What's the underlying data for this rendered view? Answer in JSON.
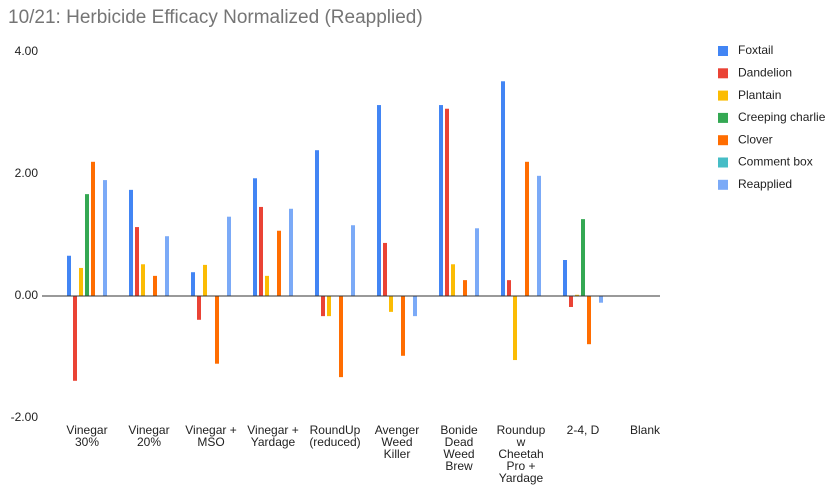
{
  "chart_data": {
    "type": "bar",
    "title": "10/21: Herbicide Efficacy Normalized (Reapplied)",
    "categories": [
      "Vinegar\n30%",
      "Vinegar\n20%",
      "Vinegar +\nMSO",
      "Vinegar +\nYardage",
      "RoundUp\n(reduced)",
      "Avenger\nWeed\nKiller",
      "Bonide\nDead\nWeed\nBrew",
      "Roundup\nw\nCheetah\nPro +\nYardage",
      "2-4, D",
      "Blank"
    ],
    "series": [
      {
        "name": "Foxtail",
        "color": "#4285f4",
        "values": [
          0.66,
          1.74,
          0.39,
          1.93,
          2.39,
          3.13,
          3.13,
          3.52,
          0.59,
          null
        ]
      },
      {
        "name": "Dandelion",
        "color": "#ea4335",
        "values": [
          -1.39,
          1.13,
          -0.39,
          1.46,
          -0.33,
          0.87,
          3.07,
          0.26,
          -0.18,
          null
        ]
      },
      {
        "name": "Plantain",
        "color": "#fbbc04",
        "values": [
          0.46,
          0.52,
          0.51,
          0.33,
          -0.33,
          -0.26,
          0.52,
          -1.05,
          0.02,
          null
        ]
      },
      {
        "name": "Creeping charlie",
        "color": "#34a853",
        "values": [
          1.67,
          null,
          null,
          null,
          null,
          null,
          null,
          null,
          1.26,
          null
        ]
      },
      {
        "name": "Clover",
        "color": "#ff6d01",
        "values": [
          2.2,
          0.33,
          -1.11,
          1.07,
          -1.33,
          -0.98,
          0.26,
          2.2,
          -0.79,
          null
        ]
      },
      {
        "name": "Comment box",
        "color": "#46bdc6",
        "values": [
          null,
          null,
          null,
          null,
          null,
          null,
          null,
          null,
          null,
          null
        ]
      },
      {
        "name": "Reapplied",
        "color": "#7baaf7",
        "values": [
          1.9,
          0.98,
          1.3,
          1.43,
          1.16,
          -0.33,
          1.11,
          1.97,
          -0.11,
          null
        ]
      }
    ],
    "ylim": [
      -2,
      4
    ],
    "yticks": [
      {
        "value": -2,
        "label": "-2.00"
      },
      {
        "value": 0,
        "label": "0.00"
      },
      {
        "value": 2,
        "label": "2.00"
      },
      {
        "value": 4,
        "label": "4.00"
      }
    ],
    "grid": false
  }
}
